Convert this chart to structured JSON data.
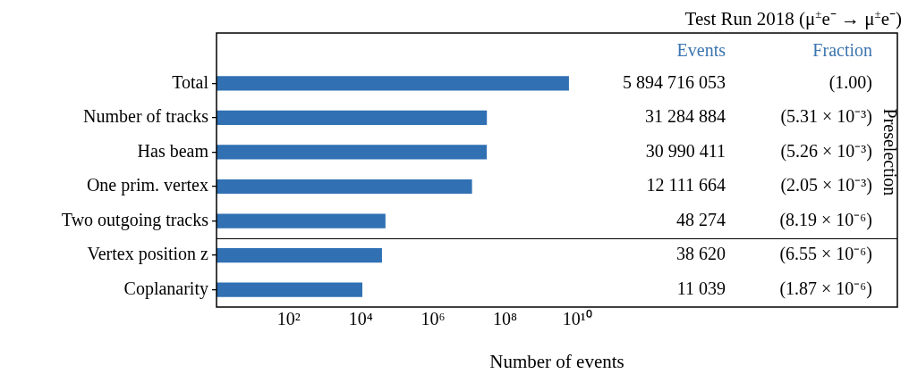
{
  "chart_data": {
    "type": "bar",
    "orientation": "horizontal",
    "title": "Test Run 2018 (μ$^{±}$e⁻ → μ$^{±}$e⁻)",
    "xlabel": "Number of events",
    "categories": [
      "Total",
      "Number of tracks",
      "Has beam",
      "One prim. vertex",
      "Two outgoing tracks",
      "Vertex position z",
      "Coplanarity"
    ],
    "values": [
      5894716053,
      31284884,
      30990411,
      12111664,
      48274,
      38620,
      11039
    ],
    "color": "#3070b3",
    "log": "x",
    "xlim": [
      1,
      7.5e+18
    ],
    "xticks": [
      {
        "value": 100,
        "label": "10²"
      },
      {
        "value": 10000,
        "label": "10⁴"
      },
      {
        "value": 1000000,
        "label": "10⁶"
      },
      {
        "value": 100000000,
        "label": "10⁸"
      },
      {
        "value": 10000000000,
        "label": "10¹⁰"
      }
    ],
    "value_labels": [
      "5 894 716 053",
      "31 284 884",
      "30 990 411",
      "12 111 664",
      "48 274",
      "38 620",
      "11 039"
    ],
    "annotations": [
      "Events",
      "Fraction",
      "Preselection",
      "(1.00)",
      "(5.31 × 10⁻³)",
      "(5.26 × 10⁻³)",
      "(2.05 × 10⁻³)",
      "(8.19 × 10⁻⁶)",
      "(6.55 × 10⁻⁶)",
      "(1.87 × 10⁻⁶)"
    ]
  }
}
